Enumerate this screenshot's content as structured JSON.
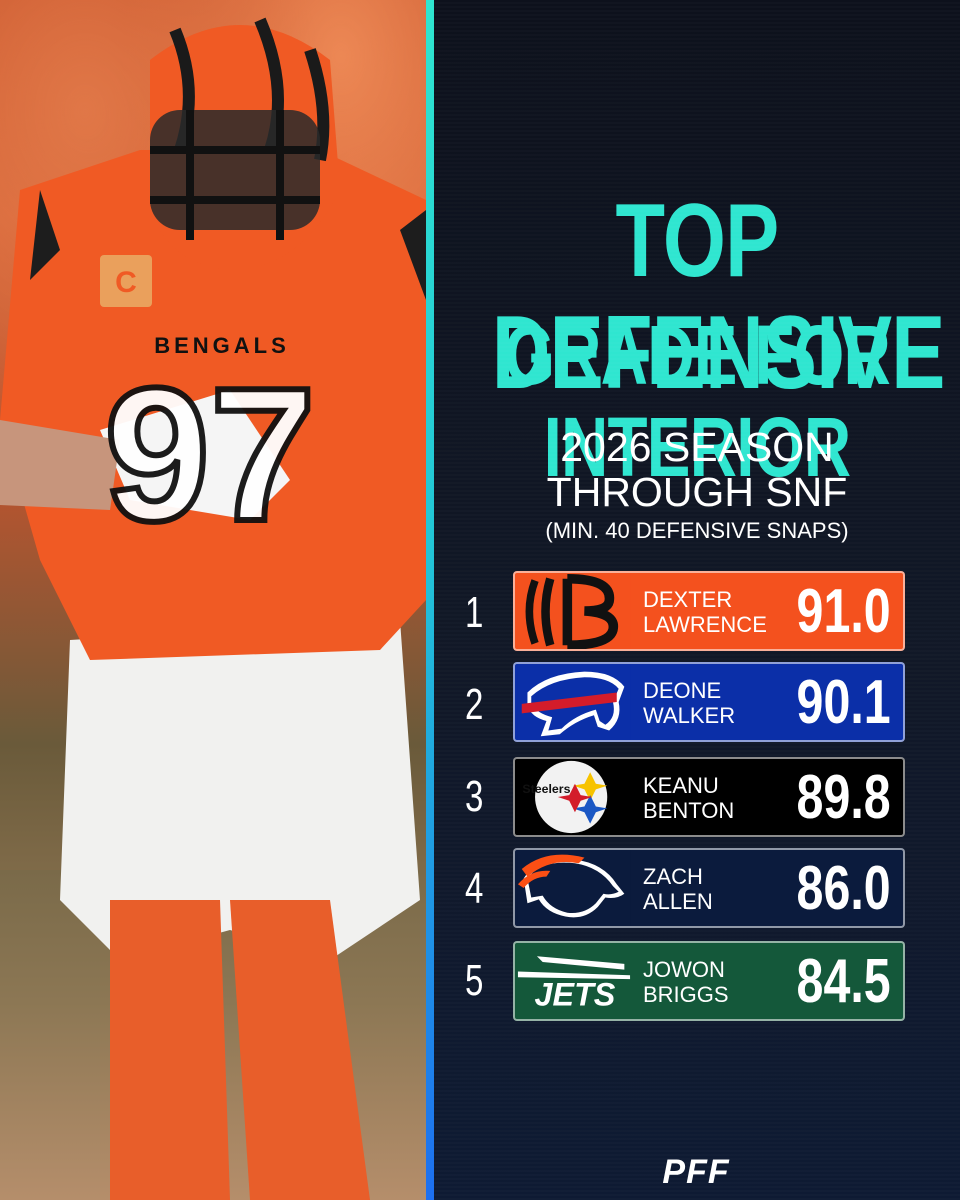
{
  "photo": {
    "jersey_team": "BENGALS",
    "jersey_number": "97",
    "captain_patch": "C"
  },
  "title": {
    "line1": "TOP DEFENSIVE",
    "line2": "GRADE FOR INTERIOR"
  },
  "subtitle": {
    "line1": "2026 SEASON",
    "line2": "THROUGH SNF",
    "line3": "(MIN. 40 DEFENSIVE SNAPS)"
  },
  "rankings": [
    {
      "rank": "1",
      "first": "DEXTER",
      "last": "LAWRENCE",
      "grade": "91.0",
      "logo": "bengals-logo",
      "color": "#f4511e"
    },
    {
      "rank": "2",
      "first": "DEONE",
      "last": "WALKER",
      "grade": "90.1",
      "logo": "bills-logo",
      "color": "#0b2fa8"
    },
    {
      "rank": "3",
      "first": "KEANU",
      "last": "BENTON",
      "grade": "89.8",
      "logo": "steelers-logo",
      "color": "#000000"
    },
    {
      "rank": "4",
      "first": "ZACH",
      "last": "ALLEN",
      "grade": "86.0",
      "logo": "broncos-logo",
      "color": "#0b1b3d"
    },
    {
      "rank": "5",
      "first": "JOWON",
      "last": "BRIGGS",
      "grade": "84.5",
      "logo": "jets-logo",
      "color": "#14583a"
    }
  ],
  "logo_text": {
    "steelers": "Steelers",
    "jets": "JETS"
  },
  "brand": "PFF",
  "accent_color": "#2fe6d0"
}
